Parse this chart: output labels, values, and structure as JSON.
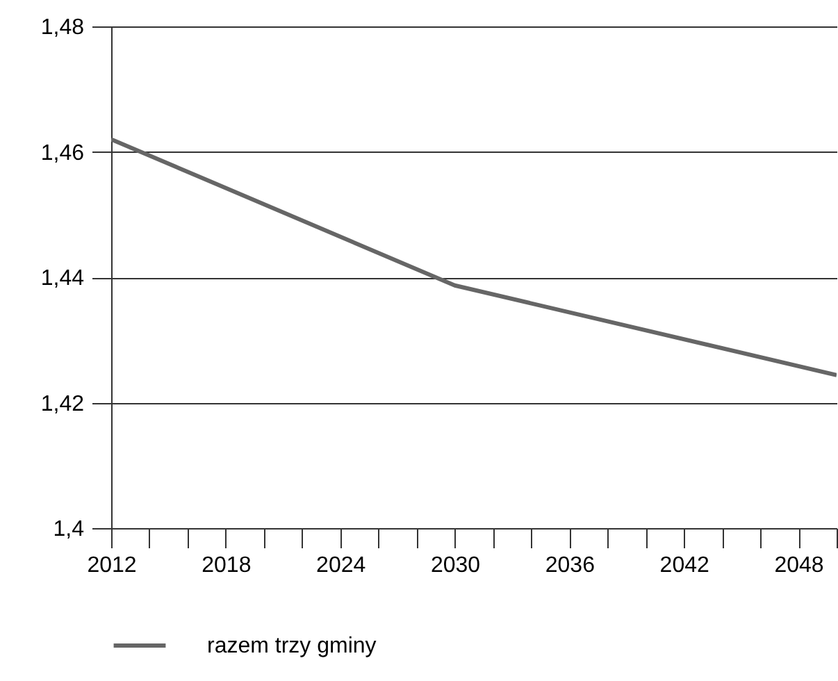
{
  "chart_data": {
    "type": "line",
    "x": [
      2012,
      2030,
      2050
    ],
    "series": [
      {
        "name": "razem trzy gminy",
        "color": "#666666",
        "values": [
          1.462,
          1.4387,
          1.4244
        ]
      }
    ],
    "xlim": [
      2012,
      2050
    ],
    "xticks": [
      2012,
      {
        "value": 2014,
        "label": null
      },
      {
        "value": 2016,
        "label": null
      },
      2018,
      {
        "value": 2020,
        "label": null
      },
      {
        "value": 2022,
        "label": null
      },
      2024,
      {
        "value": 2026,
        "label": null
      },
      {
        "value": 2028,
        "label": null
      },
      2030,
      {
        "value": 2032,
        "label": null
      },
      {
        "value": 2034,
        "label": null
      },
      2036,
      {
        "value": 2038,
        "label": null
      },
      {
        "value": 2040,
        "label": null
      },
      2042,
      {
        "value": 2044,
        "label": null
      },
      {
        "value": 2046,
        "label": null
      },
      2048,
      {
        "value": 2050,
        "label": null
      }
    ],
    "ylim": [
      1.4,
      1.48
    ],
    "yticks": [
      {
        "value": 1.4,
        "label": "1,4"
      },
      {
        "value": 1.42,
        "label": "1,42"
      },
      {
        "value": 1.44,
        "label": "1,44"
      },
      {
        "value": 1.46,
        "label": "1,46"
      },
      {
        "value": 1.48,
        "label": "1,48"
      }
    ],
    "grid": "y",
    "legend": "bottom",
    "marker": "none",
    "line_style": "solid"
  }
}
